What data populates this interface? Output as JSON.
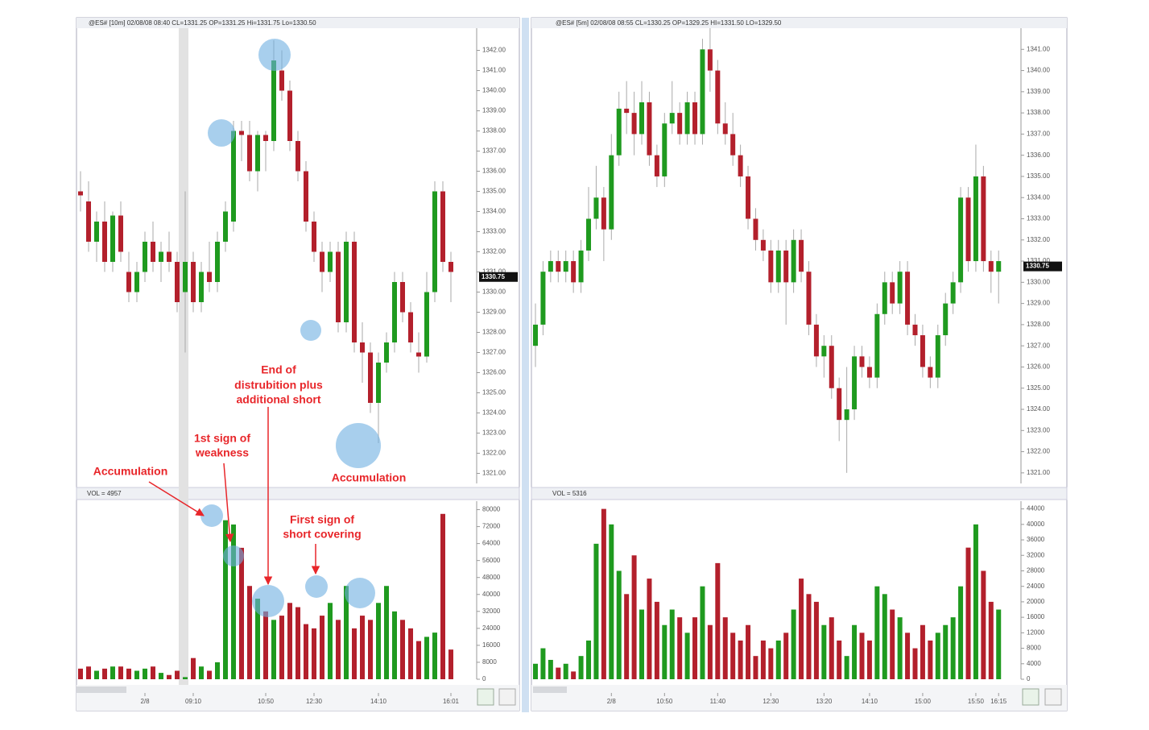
{
  "chart_data": [
    {
      "type": "candlestick",
      "header": "@ES# [10m] 02/08/08 08:40 CL=1331.25 OP=1331.25 Hi=1331.75 Lo=1330.50",
      "volume_label": "VOL = 4957",
      "up_color": "#1f9a1f",
      "down_color": "#b3202c",
      "categories": [
        null,
        null,
        null,
        null,
        null,
        null,
        null,
        null,
        "2/8",
        null,
        null,
        null,
        null,
        null,
        "09:10",
        null,
        null,
        null,
        null,
        null,
        null,
        null,
        null,
        "10:50",
        null,
        null,
        null,
        null,
        null,
        "12:30",
        null,
        null,
        null,
        null,
        null,
        null,
        null,
        "14:10",
        null,
        null,
        null,
        null,
        null,
        null,
        null,
        null,
        "16:01"
      ],
      "open": [
        1335,
        1334.5,
        1332.5,
        1333.5,
        1331.5,
        1333.8,
        1331,
        1330,
        1331,
        1332.5,
        1331.5,
        1332,
        1331.5,
        1330,
        1331.5,
        1329.5,
        1331,
        1330.5,
        1332.5,
        1333.5,
        1338,
        1337.8,
        1336,
        1337.8,
        1337.5,
        1341,
        1340,
        1337.5,
        1336,
        1333.5,
        1332,
        1331,
        1332,
        1328.5,
        1332.5,
        1327.5,
        1327,
        1324.5,
        1326.5,
        1327.5,
        1330.5,
        1329,
        1327,
        1326.8,
        1330,
        1335,
        1331.5
      ],
      "high": [
        1336,
        1335.5,
        1334,
        1334.5,
        1334,
        1334.5,
        1332,
        1331.5,
        1333,
        1333.5,
        1332.5,
        1333,
        1332,
        1335,
        1332,
        1331.5,
        1332.5,
        1333,
        1334.5,
        1338.5,
        1338.5,
        1338.5,
        1338,
        1338,
        1342.5,
        1342,
        1340.5,
        1338,
        1336.5,
        1334,
        1332.5,
        1332.5,
        1332.5,
        1333,
        1333,
        1328.5,
        1327.5,
        1327,
        1328,
        1331,
        1331,
        1329.5,
        1328,
        1331,
        1335.5,
        1335.5,
        1332
      ],
      "low": [
        1334,
        1332,
        1331.5,
        1331,
        1331,
        1331.5,
        1329.5,
        1329.5,
        1330.5,
        1331,
        1330.5,
        1331,
        1329,
        1327,
        1329,
        1329,
        1330,
        1330,
        1332,
        1333,
        1336.5,
        1335.5,
        1335,
        1336,
        1337,
        1339.5,
        1337,
        1335.5,
        1333,
        1331.5,
        1330,
        1330.5,
        1328,
        1328,
        1327,
        1325.5,
        1324,
        1322.5,
        1326,
        1327,
        1328.5,
        1327,
        1326,
        1326.5,
        1329.5,
        1331,
        1329.5
      ],
      "close": [
        1334.8,
        1332.5,
        1333.5,
        1331.5,
        1333.8,
        1332,
        1330,
        1331,
        1332.5,
        1331.5,
        1332,
        1331.5,
        1329.5,
        1331.5,
        1329.5,
        1331,
        1330.5,
        1332.5,
        1334,
        1338,
        1337.8,
        1336,
        1337.8,
        1337.5,
        1341.5,
        1340,
        1337.5,
        1336,
        1333.5,
        1332,
        1331,
        1332,
        1328.5,
        1332.5,
        1327.5,
        1327,
        1324.5,
        1326.5,
        1327.5,
        1330.5,
        1329,
        1327.5,
        1326.8,
        1330,
        1335,
        1331.5,
        1331
      ],
      "volume": [
        5000,
        6000,
        4000,
        5000,
        6000,
        6000,
        5000,
        4000,
        5000,
        6000,
        3000,
        2000,
        4000,
        1000,
        10000,
        6000,
        4000,
        8000,
        75000,
        73000,
        62000,
        44000,
        38000,
        32000,
        28000,
        30000,
        36000,
        34000,
        26000,
        24000,
        30000,
        36000,
        28000,
        44000,
        24000,
        30000,
        28000,
        36000,
        44000,
        32000,
        28000,
        24000,
        18000,
        20000,
        22000,
        78000,
        14000
      ],
      "ylim": [
        1320.5,
        1343.1
      ],
      "yticks": [
        {
          "value": 1321,
          "label": "1321.00"
        },
        {
          "value": 1322,
          "label": "1322.00"
        },
        {
          "value": 1323,
          "label": "1323.00"
        },
        {
          "value": 1324,
          "label": "1324.00"
        },
        {
          "value": 1325,
          "label": "1325.00"
        },
        {
          "value": 1326,
          "label": "1326.00"
        },
        {
          "value": 1327,
          "label": "1327.00"
        },
        {
          "value": 1328,
          "label": "1328.00"
        },
        {
          "value": 1329,
          "label": "1329.00"
        },
        {
          "value": 1330,
          "label": "1330.00"
        },
        {
          "value": 1331,
          "label": "1331.00"
        },
        {
          "value": 1332,
          "label": "1332.00"
        },
        {
          "value": 1333,
          "label": "1333.00"
        },
        {
          "value": 1334,
          "label": "1334.00"
        },
        {
          "value": 1335,
          "label": "1335.00"
        },
        {
          "value": 1336,
          "label": "1336.00"
        },
        {
          "value": 1337,
          "label": "1337.00"
        },
        {
          "value": 1338,
          "label": "1338.00"
        },
        {
          "value": 1339,
          "label": "1339.00"
        },
        {
          "value": 1340,
          "label": "1340.00"
        },
        {
          "value": 1341,
          "label": "1341.00"
        },
        {
          "value": 1342,
          "label": "1342.00"
        }
      ],
      "volume_ylim": [
        0,
        84000
      ],
      "volume_yticks": [
        0,
        8000,
        16000,
        24000,
        32000,
        40000,
        48000,
        56000,
        64000,
        72000,
        80000
      ],
      "last": 1330.75,
      "annotations": [
        [
          "Accumulation"
        ],
        [
          "1st sign of",
          "weakness"
        ],
        [
          "End of",
          "distrubition plus",
          "additional short"
        ],
        [
          "First sign of",
          "short covering"
        ],
        [
          "Accumulation"
        ]
      ]
    },
    {
      "type": "candlestick",
      "header": "@ES# [5m] 02/08/08 08:55 CL=1330.25 OP=1329.25 HI=1331.50 LO=1329.50",
      "volume_label": "VOL = 5316",
      "up_color": "#1f9a1f",
      "down_color": "#b3202c",
      "categories": [
        null,
        null,
        null,
        null,
        null,
        null,
        null,
        null,
        null,
        null,
        "2/8",
        null,
        null,
        null,
        null,
        null,
        null,
        "10:50",
        null,
        null,
        null,
        null,
        null,
        null,
        "11:40",
        null,
        null,
        null,
        null,
        null,
        null,
        "12:30",
        null,
        null,
        null,
        null,
        null,
        null,
        "13:20",
        null,
        null,
        null,
        null,
        null,
        "14:10",
        null,
        null,
        null,
        null,
        null,
        null,
        "15:00",
        null,
        null,
        null,
        null,
        null,
        null,
        "15:50",
        null,
        null,
        "16:15"
      ],
      "open": [
        1327,
        1328,
        1330.5,
        1331,
        1330.5,
        1331,
        1330,
        1331.5,
        1333,
        1334,
        1332.5,
        1336,
        1338.2,
        1338,
        1337,
        1338.5,
        1336,
        1335,
        1337.5,
        1338,
        1337,
        1338.5,
        1337,
        1341,
        1340,
        1337.5,
        1337,
        1336,
        1335,
        1333,
        1332,
        1331.5,
        1330,
        1331.5,
        1330,
        1332,
        1330.5,
        1328,
        1326.5,
        1327,
        1325,
        1323.5,
        1324,
        1326.5,
        1326,
        1325.5,
        1328.5,
        1330,
        1329,
        1330.5,
        1328,
        1327.5,
        1326,
        1325.5,
        1327.5,
        1329,
        1330,
        1334,
        1331,
        1335,
        1331,
        1330.5
      ],
      "high": [
        1329,
        1331,
        1331.5,
        1331.5,
        1331.5,
        1331.5,
        1332,
        1334.5,
        1335.5,
        1334.5,
        1337,
        1339,
        1339.5,
        1339,
        1339.5,
        1339,
        1336.5,
        1338,
        1339.5,
        1338.5,
        1339,
        1339,
        1341.5,
        1342,
        1340.5,
        1338.5,
        1338,
        1336.5,
        1335.5,
        1333.5,
        1332.5,
        1332,
        1332,
        1332,
        1332.5,
        1332.5,
        1331,
        1328.5,
        1327.5,
        1327.5,
        1325.5,
        1326,
        1327,
        1327,
        1326.5,
        1329,
        1330.5,
        1330.5,
        1331,
        1331,
        1328.5,
        1328,
        1326.5,
        1328,
        1329.5,
        1330.5,
        1334.5,
        1334.5,
        1336.5,
        1335.5,
        1331.5,
        1331.5
      ],
      "low": [
        1326,
        1327.5,
        1330,
        1330,
        1330,
        1329.5,
        1329.5,
        1331,
        1332.5,
        1331,
        1332,
        1335.5,
        1337,
        1336,
        1336.5,
        1335.5,
        1334.5,
        1334.5,
        1337,
        1336.5,
        1336.5,
        1336.5,
        1336.5,
        1339,
        1337,
        1336.5,
        1335.5,
        1334.5,
        1332.5,
        1331.5,
        1331,
        1329.5,
        1329.5,
        1328,
        1329.5,
        1330,
        1327.5,
        1326,
        1325.5,
        1324.5,
        1322.5,
        1321,
        1323.5,
        1325.5,
        1325,
        1325,
        1328,
        1328.5,
        1328.5,
        1327.5,
        1327,
        1325.5,
        1325,
        1325,
        1327,
        1328.5,
        1329.5,
        1330.5,
        1330.5,
        1330.5,
        1329.5,
        1329
      ],
      "close": [
        1328,
        1330.5,
        1331,
        1330.5,
        1331,
        1330,
        1331.5,
        1333,
        1334,
        1332.5,
        1336,
        1338.2,
        1338,
        1337,
        1338.5,
        1336,
        1335,
        1337.5,
        1338,
        1337,
        1338.5,
        1337,
        1341,
        1340,
        1337.5,
        1337,
        1336,
        1335,
        1333,
        1332,
        1331.5,
        1330,
        1331.5,
        1330,
        1332,
        1330.5,
        1328,
        1326.5,
        1327,
        1325,
        1323.5,
        1324,
        1326.5,
        1326,
        1325.5,
        1328.5,
        1330,
        1329,
        1330.5,
        1328,
        1327.5,
        1326,
        1325.5,
        1327.5,
        1329,
        1330,
        1334,
        1331,
        1335,
        1331,
        1330.5,
        1331
      ],
      "volume": [
        4000,
        8000,
        5000,
        3000,
        4000,
        2000,
        6000,
        10000,
        35000,
        44000,
        40000,
        28000,
        22000,
        32000,
        18000,
        26000,
        20000,
        14000,
        18000,
        16000,
        12000,
        16000,
        24000,
        14000,
        30000,
        16000,
        12000,
        10000,
        14000,
        6000,
        10000,
        8000,
        10000,
        12000,
        18000,
        26000,
        22000,
        20000,
        14000,
        16000,
        10000,
        6000,
        14000,
        12000,
        10000,
        24000,
        22000,
        18000,
        16000,
        12000,
        8000,
        14000,
        10000,
        12000,
        14000,
        16000,
        24000,
        34000,
        40000,
        28000,
        20000,
        18000
      ],
      "ylim": [
        1320.5,
        1342
      ],
      "yticks": [
        {
          "value": 1321,
          "label": "1321.00"
        },
        {
          "value": 1322,
          "label": "1322.00"
        },
        {
          "value": 1323,
          "label": "1323.00"
        },
        {
          "value": 1324,
          "label": "1324.00"
        },
        {
          "value": 1325,
          "label": "1325.00"
        },
        {
          "value": 1326,
          "label": "1326.00"
        },
        {
          "value": 1327,
          "label": "1327.00"
        },
        {
          "value": 1328,
          "label": "1328.00"
        },
        {
          "value": 1329,
          "label": "1329.00"
        },
        {
          "value": 1330,
          "label": "1330.00"
        },
        {
          "value": 1331,
          "label": "1331.00"
        },
        {
          "value": 1332,
          "label": "1332.00"
        },
        {
          "value": 1333,
          "label": "1333.00"
        },
        {
          "value": 1334,
          "label": "1334.00"
        },
        {
          "value": 1335,
          "label": "1335.00"
        },
        {
          "value": 1336,
          "label": "1336.00"
        },
        {
          "value": 1337,
          "label": "1337.00"
        },
        {
          "value": 1338,
          "label": "1338.00"
        },
        {
          "value": 1339,
          "label": "1339.00"
        },
        {
          "value": 1340,
          "label": "1340.00"
        },
        {
          "value": 1341,
          "label": "1341.00"
        }
      ],
      "volume_ylim": [
        0,
        46000
      ],
      "volume_yticks": [
        0,
        4000,
        8000,
        12000,
        16000,
        20000,
        24000,
        28000,
        32000,
        36000,
        40000,
        44000
      ],
      "last": 1330.75
    }
  ]
}
